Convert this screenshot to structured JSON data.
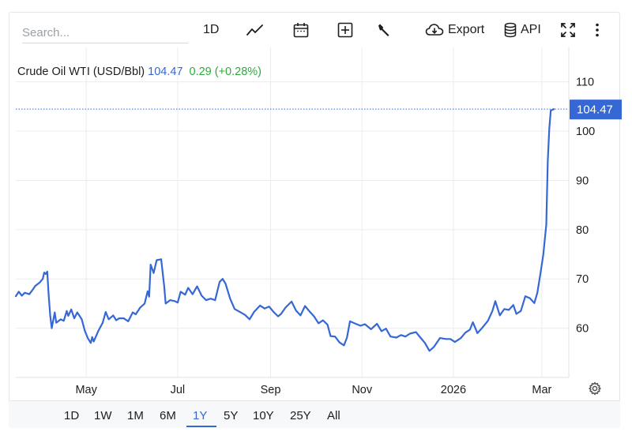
{
  "toolbar": {
    "search_placeholder": "Search...",
    "interval_label": "1D",
    "export_label": "Export",
    "api_label": "API",
    "icons": [
      "line-chart-icon",
      "calendar-icon",
      "plus-square-icon",
      "wrench-icon",
      "cloud-download-icon",
      "database-icon",
      "fullscreen-icon",
      "more-vertical-icon",
      "gear-icon"
    ]
  },
  "legend": {
    "instrument": "Crude Oil WTI (USD/Bbl)",
    "price": "104.47",
    "change": "0.29 (+0.28%)"
  },
  "colors": {
    "line": "#3568d4",
    "change_positive": "#2eaa3a",
    "grid": "#ececec"
  },
  "ranges": {
    "items": [
      "1D",
      "1W",
      "1M",
      "6M",
      "1Y",
      "5Y",
      "10Y",
      "25Y",
      "All"
    ],
    "active": "1Y"
  },
  "chart_data": {
    "type": "line",
    "title": "",
    "xlabel": "",
    "ylabel": "",
    "y_axis_position": "right",
    "yticks": [
      60,
      70,
      80,
      90,
      100,
      110
    ],
    "ylim": [
      50,
      117
    ],
    "xlim": [
      "2025-03-15",
      "2026-03-19"
    ],
    "x_ticks": [
      {
        "label": "May",
        "date": "2025-05-01"
      },
      {
        "label": "Jul",
        "date": "2025-07-01"
      },
      {
        "label": "Sep",
        "date": "2025-09-01"
      },
      {
        "label": "Nov",
        "date": "2025-11-01"
      },
      {
        "label": "2026",
        "date": "2026-01-01"
      },
      {
        "label": "Mar",
        "date": "2026-03-01"
      }
    ],
    "grid": true,
    "last_price_label": "104.47",
    "series": [
      {
        "values": [
          [
            "2025-03-15",
            66.5
          ],
          [
            "2025-03-17",
            67.4
          ],
          [
            "2025-03-19",
            66.6
          ],
          [
            "2025-03-21",
            67.2
          ],
          [
            "2025-03-24",
            66.9
          ],
          [
            "2025-03-26",
            67.7
          ],
          [
            "2025-03-28",
            68.6
          ],
          [
            "2025-03-31",
            69.3
          ],
          [
            "2025-04-02",
            70.0
          ],
          [
            "2025-04-03",
            71.3
          ],
          [
            "2025-04-04",
            71.0
          ],
          [
            "2025-04-05",
            71.5
          ],
          [
            "2025-04-06",
            66.5
          ],
          [
            "2025-04-07",
            62.5
          ],
          [
            "2025-04-08",
            60.0
          ],
          [
            "2025-04-10",
            63.2
          ],
          [
            "2025-04-11",
            61.1
          ],
          [
            "2025-04-14",
            61.8
          ],
          [
            "2025-04-16",
            61.5
          ],
          [
            "2025-04-18",
            63.5
          ],
          [
            "2025-04-19",
            62.5
          ],
          [
            "2025-04-21",
            63.8
          ],
          [
            "2025-04-23",
            62.0
          ],
          [
            "2025-04-25",
            63.2
          ],
          [
            "2025-04-28",
            61.8
          ],
          [
            "2025-04-30",
            59.5
          ],
          [
            "2025-05-02",
            58.0
          ],
          [
            "2025-05-04",
            57.0
          ],
          [
            "2025-05-05",
            58.2
          ],
          [
            "2025-05-06",
            57.3
          ],
          [
            "2025-05-09",
            59.4
          ],
          [
            "2025-05-12",
            61.1
          ],
          [
            "2025-05-14",
            63.3
          ],
          [
            "2025-05-16",
            61.8
          ],
          [
            "2025-05-19",
            62.6
          ],
          [
            "2025-05-21",
            61.6
          ],
          [
            "2025-05-23",
            62.0
          ],
          [
            "2025-05-26",
            62.0
          ],
          [
            "2025-05-29",
            61.4
          ],
          [
            "2025-06-01",
            63.2
          ],
          [
            "2025-06-03",
            62.8
          ],
          [
            "2025-06-06",
            64.2
          ],
          [
            "2025-06-09",
            65.0
          ],
          [
            "2025-06-11",
            67.5
          ],
          [
            "2025-06-12",
            66.4
          ],
          [
            "2025-06-13",
            72.9
          ],
          [
            "2025-06-15",
            71.2
          ],
          [
            "2025-06-17",
            73.8
          ],
          [
            "2025-06-20",
            74.0
          ],
          [
            "2025-06-22",
            68.6
          ],
          [
            "2025-06-23",
            65.0
          ],
          [
            "2025-06-26",
            65.7
          ],
          [
            "2025-06-29",
            65.5
          ],
          [
            "2025-07-01",
            65.2
          ],
          [
            "2025-07-03",
            67.4
          ],
          [
            "2025-07-06",
            66.8
          ],
          [
            "2025-07-08",
            68.2
          ],
          [
            "2025-07-11",
            66.9
          ],
          [
            "2025-07-14",
            68.5
          ],
          [
            "2025-07-17",
            66.6
          ],
          [
            "2025-07-20",
            65.7
          ],
          [
            "2025-07-23",
            66.0
          ],
          [
            "2025-07-26",
            65.7
          ],
          [
            "2025-07-29",
            69.4
          ],
          [
            "2025-07-31",
            70.0
          ],
          [
            "2025-08-02",
            69.0
          ],
          [
            "2025-08-05",
            66.0
          ],
          [
            "2025-08-08",
            63.9
          ],
          [
            "2025-08-12",
            63.2
          ],
          [
            "2025-08-15",
            62.7
          ],
          [
            "2025-08-18",
            61.8
          ],
          [
            "2025-08-21",
            63.3
          ],
          [
            "2025-08-25",
            64.6
          ],
          [
            "2025-08-28",
            64.0
          ],
          [
            "2025-08-31",
            64.4
          ],
          [
            "2025-09-03",
            63.3
          ],
          [
            "2025-09-06",
            62.4
          ],
          [
            "2025-09-08",
            62.9
          ],
          [
            "2025-09-11",
            64.2
          ],
          [
            "2025-09-15",
            65.4
          ],
          [
            "2025-09-18",
            63.6
          ],
          [
            "2025-09-21",
            62.6
          ],
          [
            "2025-09-24",
            64.5
          ],
          [
            "2025-09-27",
            63.4
          ],
          [
            "2025-09-30",
            62.4
          ],
          [
            "2025-10-03",
            61.0
          ],
          [
            "2025-10-06",
            61.6
          ],
          [
            "2025-10-09",
            60.7
          ],
          [
            "2025-10-11",
            58.4
          ],
          [
            "2025-10-14",
            58.3
          ],
          [
            "2025-10-17",
            57.1
          ],
          [
            "2025-10-20",
            56.5
          ],
          [
            "2025-10-22",
            58.1
          ],
          [
            "2025-10-24",
            61.4
          ],
          [
            "2025-10-27",
            61.0
          ],
          [
            "2025-10-31",
            60.5
          ],
          [
            "2025-11-03",
            60.8
          ],
          [
            "2025-11-07",
            59.8
          ],
          [
            "2025-11-11",
            60.9
          ],
          [
            "2025-11-14",
            59.4
          ],
          [
            "2025-11-17",
            59.9
          ],
          [
            "2025-11-20",
            58.3
          ],
          [
            "2025-11-24",
            58.1
          ],
          [
            "2025-11-27",
            58.6
          ],
          [
            "2025-11-30",
            58.3
          ],
          [
            "2025-12-03",
            58.9
          ],
          [
            "2025-12-07",
            59.2
          ],
          [
            "2025-12-10",
            58.1
          ],
          [
            "2025-12-13",
            57.0
          ],
          [
            "2025-12-16",
            55.4
          ],
          [
            "2025-12-19",
            56.2
          ],
          [
            "2025-12-23",
            58.0
          ],
          [
            "2025-12-27",
            57.8
          ],
          [
            "2025-12-30",
            57.8
          ],
          [
            "2026-01-02",
            57.2
          ],
          [
            "2026-01-06",
            58.0
          ],
          [
            "2026-01-09",
            59.1
          ],
          [
            "2026-01-12",
            59.7
          ],
          [
            "2026-01-14",
            61.2
          ],
          [
            "2026-01-17",
            59.0
          ],
          [
            "2026-01-20",
            60.0
          ],
          [
            "2026-01-24",
            61.5
          ],
          [
            "2026-01-27",
            63.5
          ],
          [
            "2026-01-29",
            65.5
          ],
          [
            "2026-02-01",
            62.6
          ],
          [
            "2026-02-04",
            63.9
          ],
          [
            "2026-02-07",
            63.7
          ],
          [
            "2026-02-10",
            64.7
          ],
          [
            "2026-02-12",
            62.9
          ],
          [
            "2026-02-15",
            63.5
          ],
          [
            "2026-02-18",
            66.5
          ],
          [
            "2026-02-21",
            66.1
          ],
          [
            "2026-02-24",
            65.1
          ],
          [
            "2026-02-26",
            67.2
          ],
          [
            "2026-02-28",
            71.0
          ],
          [
            "2026-03-02",
            75.0
          ],
          [
            "2026-03-03",
            78.0
          ],
          [
            "2026-03-04",
            81.0
          ],
          [
            "2026-03-05",
            94.0
          ],
          [
            "2026-03-06",
            100.5
          ],
          [
            "2026-03-07",
            104.2
          ],
          [
            "2026-03-09",
            104.47
          ]
        ]
      }
    ]
  }
}
